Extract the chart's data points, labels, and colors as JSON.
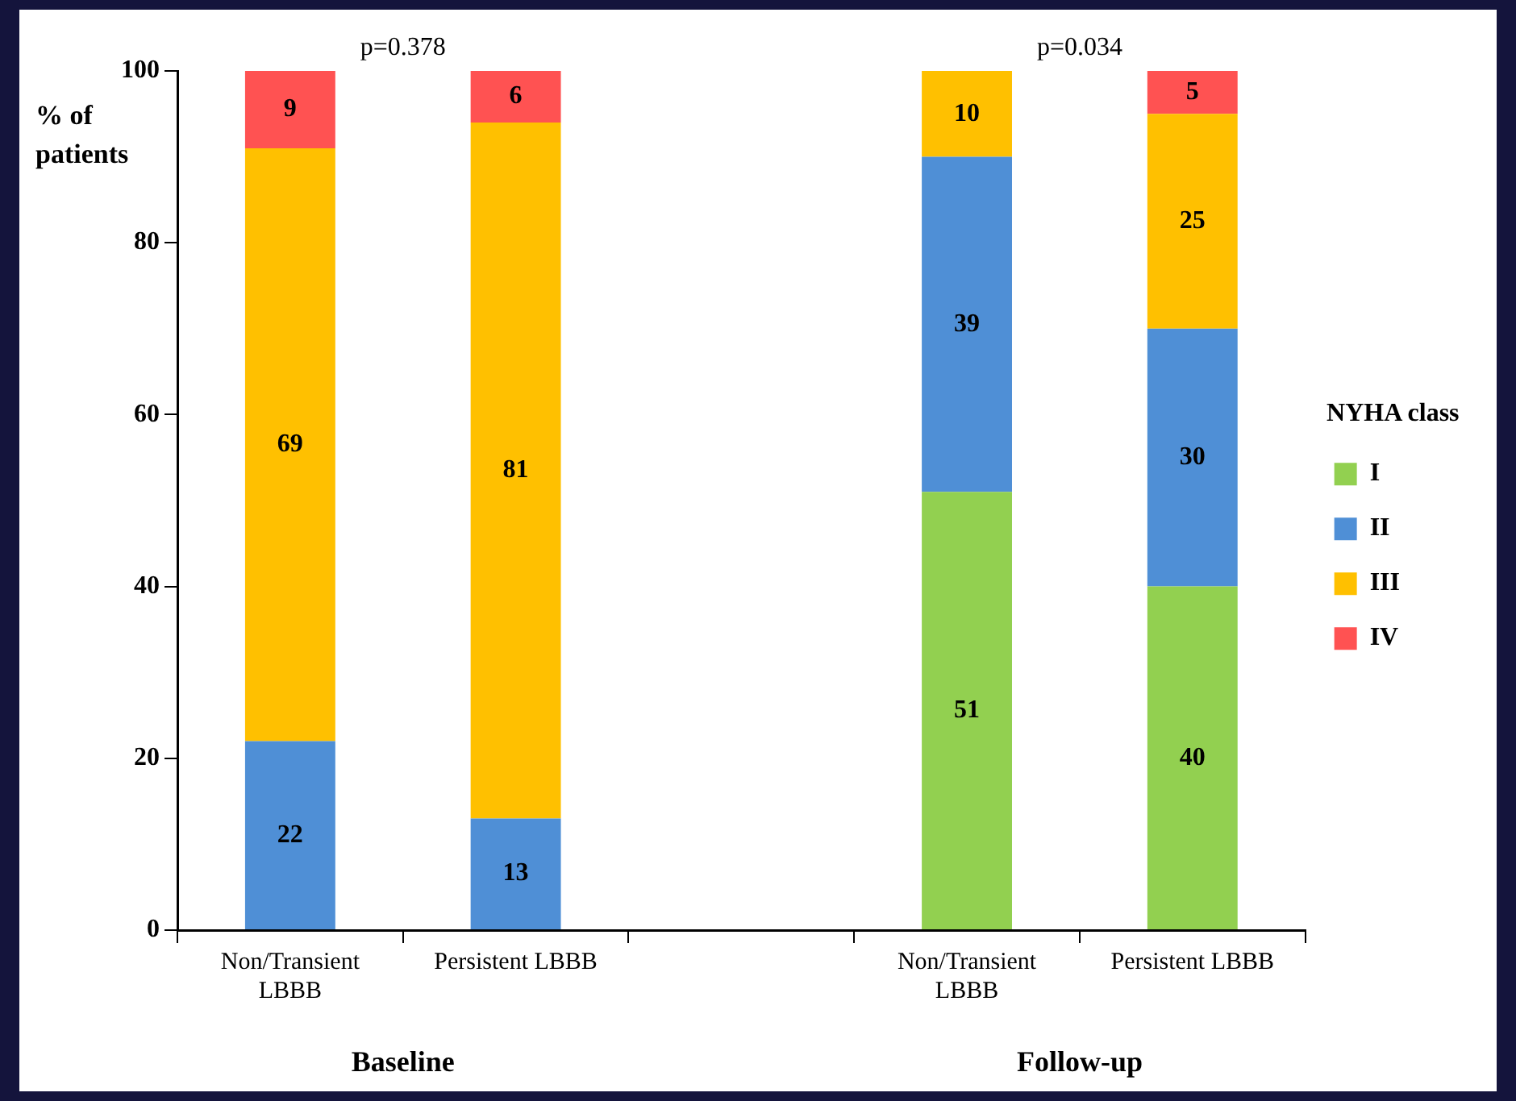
{
  "chart_data": {
    "type": "bar",
    "stacked": true,
    "categories": [
      "Non/Transient LBBB",
      "Persistent LBBB",
      null,
      "Non/Transient LBBB",
      "Persistent LBBB"
    ],
    "series": [
      {
        "name": "I",
        "color": "#92d050",
        "values": [
          null,
          null,
          null,
          51,
          40
        ]
      },
      {
        "name": "II",
        "color": "#4f8fd6",
        "values": [
          22,
          13,
          null,
          39,
          30
        ]
      },
      {
        "name": "III",
        "color": "#ffc000",
        "values": [
          69,
          81,
          null,
          10,
          25
        ]
      },
      {
        "name": "IV",
        "color": "#ff5252",
        "values": [
          9,
          6,
          null,
          null,
          5
        ]
      }
    ],
    "ylabel": "% of patients",
    "legend_title": "NYHA class",
    "legend": "right",
    "ylim": [
      0,
      100
    ],
    "yticks": [
      0,
      20,
      40,
      60,
      80,
      100
    ],
    "grid": false,
    "data_labels": true,
    "annotations": [
      "p=0.378",
      "p=0.034",
      "Baseline",
      "Follow-up"
    ]
  }
}
